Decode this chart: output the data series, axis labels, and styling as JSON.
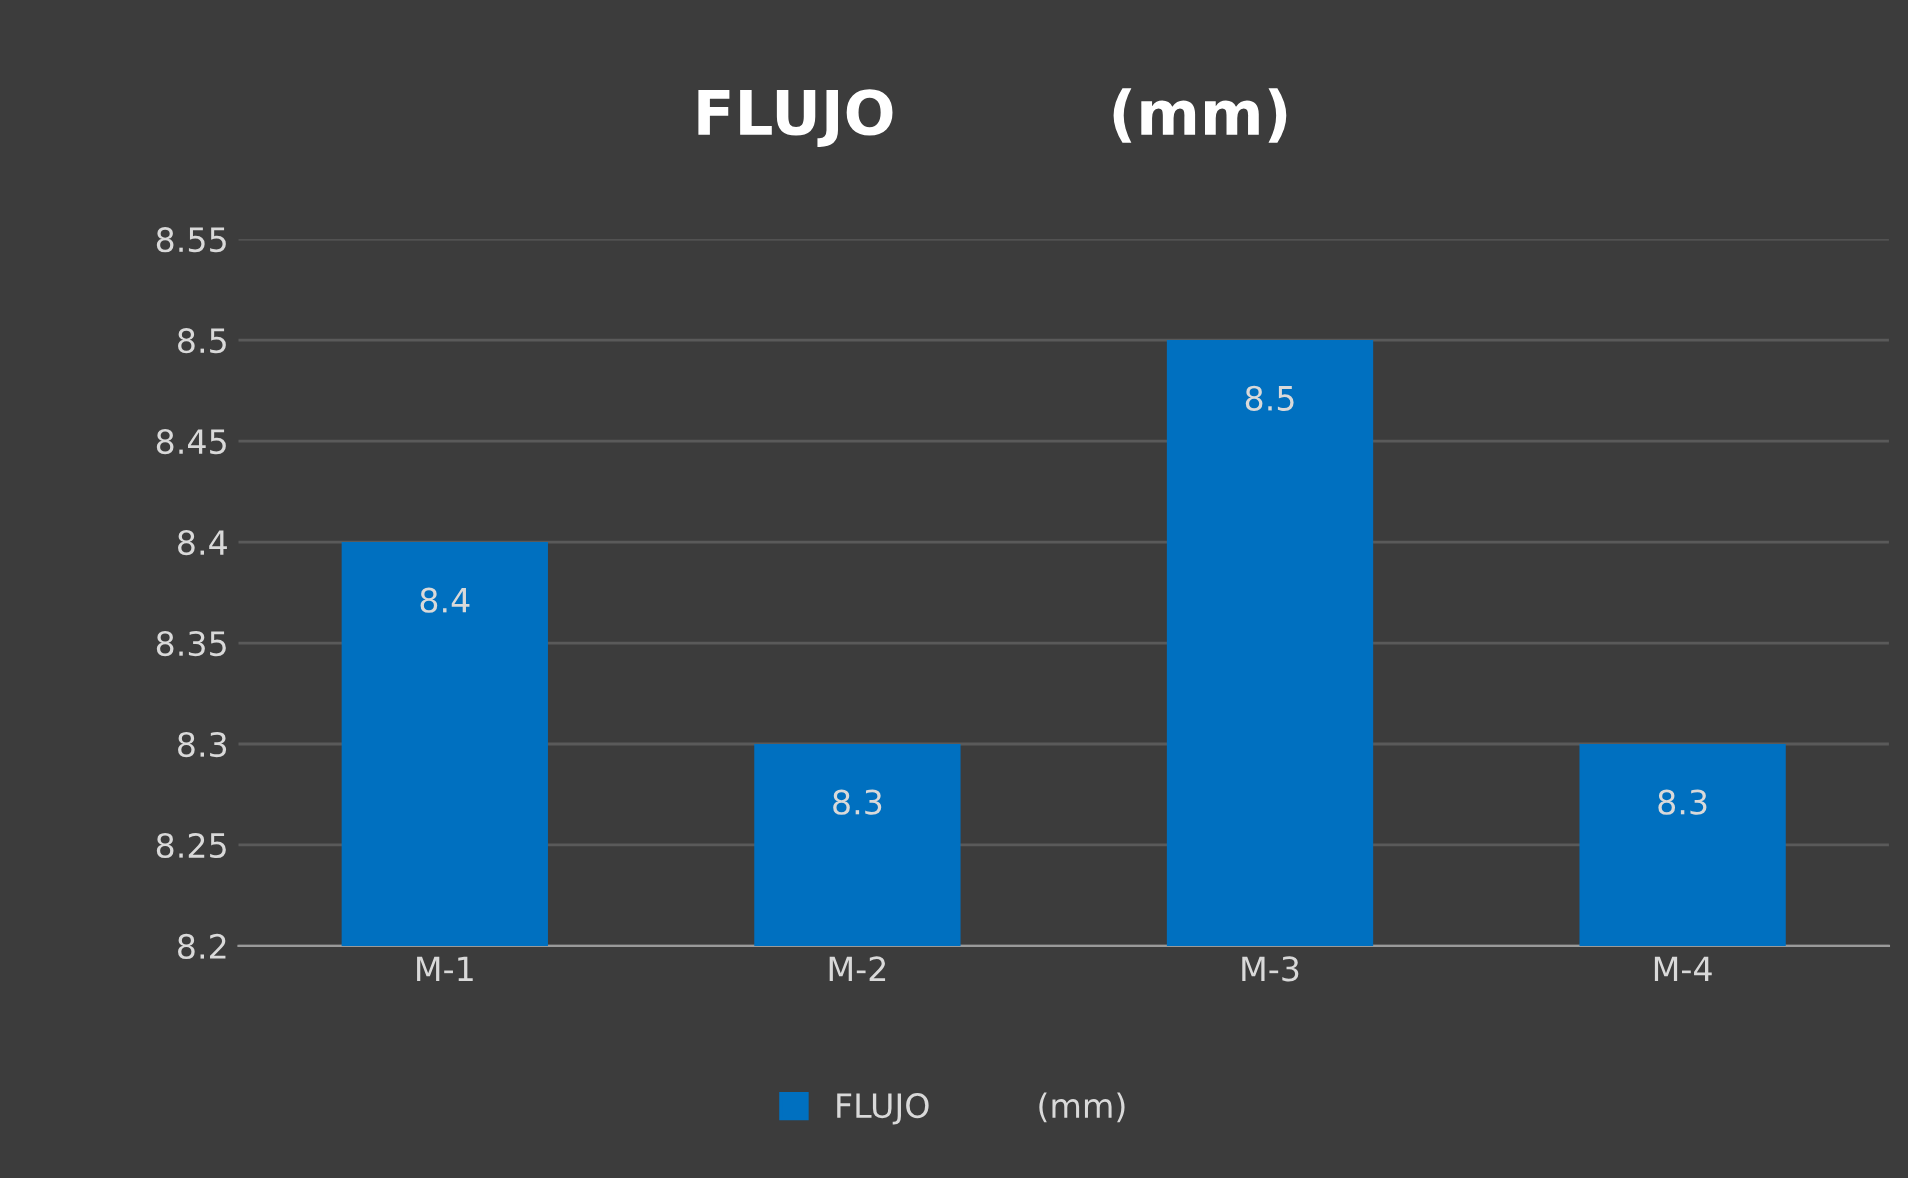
{
  "chart_data": {
    "type": "bar",
    "title": "FLUJO          (mm)",
    "categories": [
      "M-1",
      "M-2",
      "M-3",
      "M-4"
    ],
    "series": [
      {
        "name": "FLUJO          (mm)",
        "color": "#0070c0",
        "values": [
          8.4,
          8.3,
          8.5,
          8.3
        ]
      }
    ],
    "ylim": [
      8.2,
      8.55
    ],
    "yticks": [
      8.2,
      8.25,
      8.3,
      8.35,
      8.4,
      8.45,
      8.5,
      8.55
    ],
    "grid": "y",
    "legend": "bottom",
    "data_labels": true
  }
}
